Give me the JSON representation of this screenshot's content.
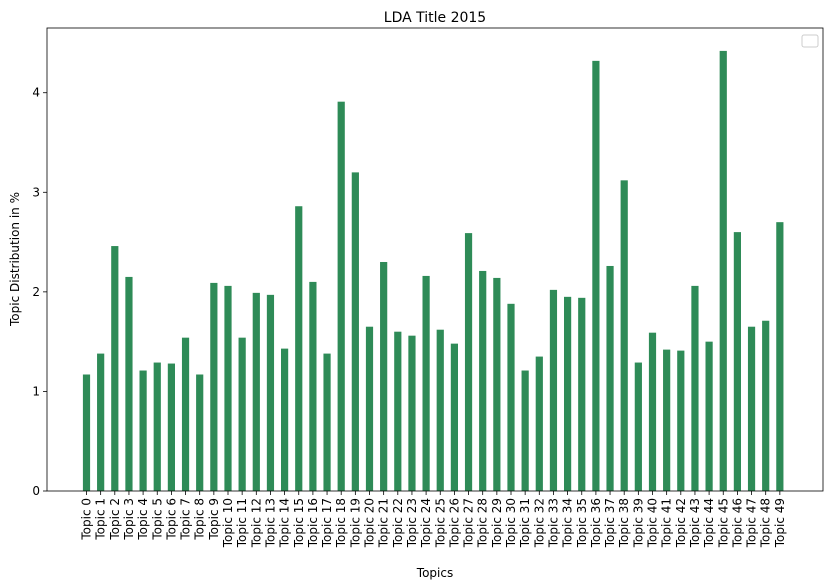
{
  "chart_data": {
    "type": "bar",
    "title": "LDA Title 2015",
    "xlabel": "Topics",
    "ylabel": "Topic Distribution in %",
    "ylim": [
      0,
      4.65
    ],
    "yticks": [
      0,
      1,
      2,
      3,
      4
    ],
    "legend": "top-right",
    "bar_color": "#2e8b57",
    "categories": [
      "Topic 0",
      "Topic 1",
      "Topic 2",
      "Topic 3",
      "Topic 4",
      "Topic 5",
      "Topic 6",
      "Topic 7",
      "Topic 8",
      "Topic 9",
      "Topic 10",
      "Topic 11",
      "Topic 12",
      "Topic 13",
      "Topic 14",
      "Topic 15",
      "Topic 16",
      "Topic 17",
      "Topic 18",
      "Topic 19",
      "Topic 20",
      "Topic 21",
      "Topic 22",
      "Topic 23",
      "Topic 24",
      "Topic 25",
      "Topic 26",
      "Topic 27",
      "Topic 28",
      "Topic 29",
      "Topic 30",
      "Topic 31",
      "Topic 32",
      "Topic 33",
      "Topic 34",
      "Topic 35",
      "Topic 36",
      "Topic 37",
      "Topic 38",
      "Topic 39",
      "Topic 40",
      "Topic 41",
      "Topic 42",
      "Topic 43",
      "Topic 44",
      "Topic 45",
      "Topic 46",
      "Topic 47",
      "Topic 48",
      "Topic 49"
    ],
    "values": [
      1.17,
      1.38,
      2.46,
      2.15,
      1.21,
      1.29,
      1.28,
      1.54,
      1.17,
      2.09,
      2.06,
      1.54,
      1.99,
      1.97,
      1.43,
      2.86,
      2.1,
      1.38,
      3.91,
      3.2,
      1.65,
      2.3,
      1.6,
      1.56,
      2.16,
      1.62,
      1.48,
      2.59,
      2.21,
      2.14,
      1.88,
      1.21,
      1.35,
      2.02,
      1.95,
      1.94,
      4.32,
      2.26,
      3.12,
      1.29,
      1.59,
      1.42,
      1.41,
      2.06,
      1.5,
      4.42,
      2.6,
      1.65,
      1.71,
      2.7
    ]
  }
}
